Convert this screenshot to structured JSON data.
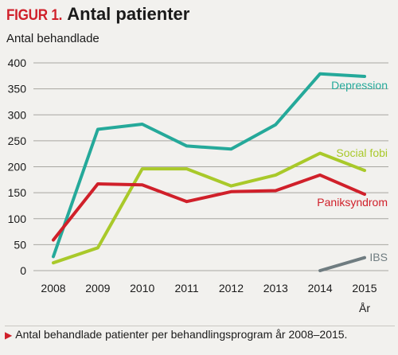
{
  "figure": {
    "label": "FIGUR 1.",
    "title": "Antal patienter",
    "caption_marker": "▶",
    "caption": "Antal behandlade patienter per behandlingsprogram år 2008–2015."
  },
  "chart_data": {
    "type": "line",
    "title": "Antal patienter",
    "ylabel": "Antal behandlade",
    "xlabel": "År",
    "x": [
      "2008",
      "2009",
      "2010",
      "2011",
      "2012",
      "2013",
      "2014",
      "2015"
    ],
    "ylim": [
      0,
      400
    ],
    "yticks": [
      0,
      50,
      100,
      150,
      200,
      250,
      300,
      350,
      400
    ],
    "grid": true,
    "series": [
      {
        "name": "Depression",
        "color": "#25a99a",
        "values": [
          27,
          272,
          282,
          240,
          234,
          281,
          379,
          374
        ]
      },
      {
        "name": "Social fobi",
        "color": "#a9c92a",
        "values": [
          15,
          44,
          196,
          196,
          163,
          184,
          226,
          193
        ]
      },
      {
        "name": "Paniksyndrom",
        "color": "#d0202a",
        "values": [
          59,
          167,
          165,
          133,
          152,
          154,
          184,
          147
        ]
      },
      {
        "name": "IBS",
        "color": "#6f7c80",
        "values": [
          null,
          null,
          null,
          null,
          null,
          null,
          0,
          25
        ]
      }
    ]
  }
}
